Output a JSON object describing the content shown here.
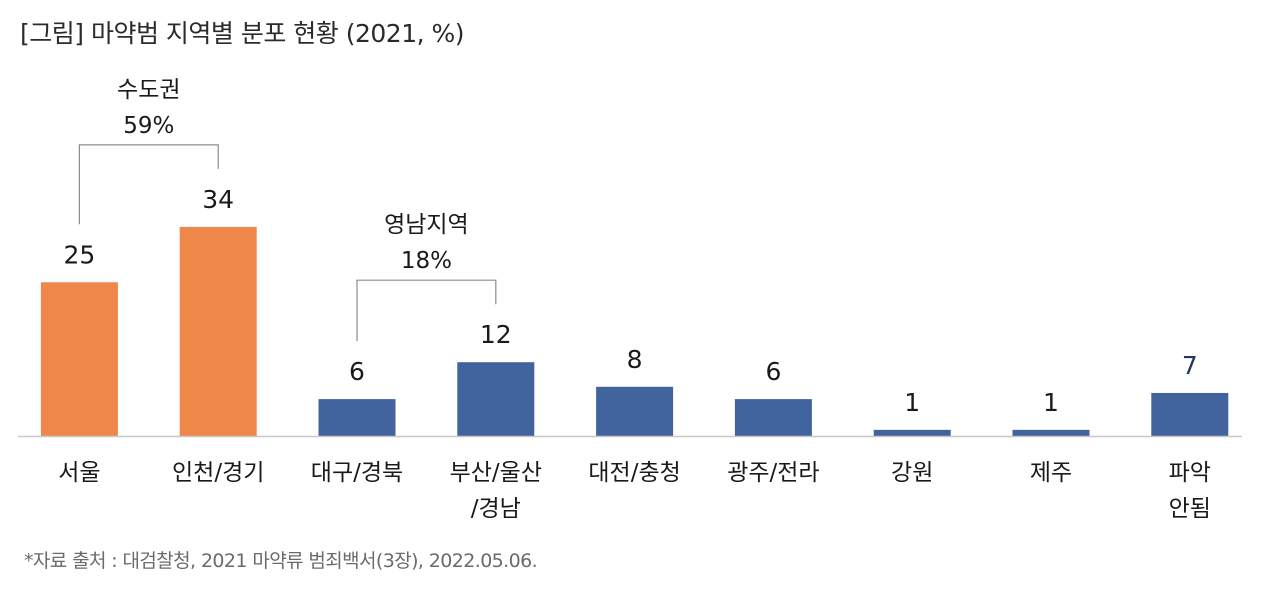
{
  "title": "[그림] 마약범 지역별 분포 현황 (2021, %)",
  "source": "*자료 출처 : 대검찰청, 2021 마약류 범죄백서(3장), 2022.05.06.",
  "chart_data": {
    "type": "bar",
    "title": "[그림] 마약범 지역별 분포 현황 (2021, %)",
    "categories": [
      [
        "서울"
      ],
      [
        "인천/경기"
      ],
      [
        "대구/경북"
      ],
      [
        "부산/울산",
        "/경남"
      ],
      [
        "대전/충청"
      ],
      [
        "광주/전라"
      ],
      [
        "강원"
      ],
      [
        "제주"
      ],
      [
        "파악",
        "안됨"
      ]
    ],
    "values": [
      25,
      34,
      6,
      12,
      8,
      6,
      1,
      1,
      7
    ],
    "colors": [
      "#F0874A",
      "#F0874A",
      "#41639E",
      "#41639E",
      "#41639E",
      "#41639E",
      "#41639E",
      "#41639E",
      "#41639E"
    ],
    "value_label_colors": [
      "#1a1a1a",
      "#1a1a1a",
      "#1a1a1a",
      "#1a1a1a",
      "#1a1a1a",
      "#1a1a1a",
      "#1a1a1a",
      "#1a1a1a",
      "#1f3864"
    ],
    "ylim": [
      0,
      40
    ],
    "grid": false,
    "brackets": [
      {
        "label": "수도권",
        "value": "59%",
        "from": 0,
        "to": 1
      },
      {
        "label": "영남지역",
        "value": "18%",
        "from": 2,
        "to": 3
      }
    ]
  }
}
